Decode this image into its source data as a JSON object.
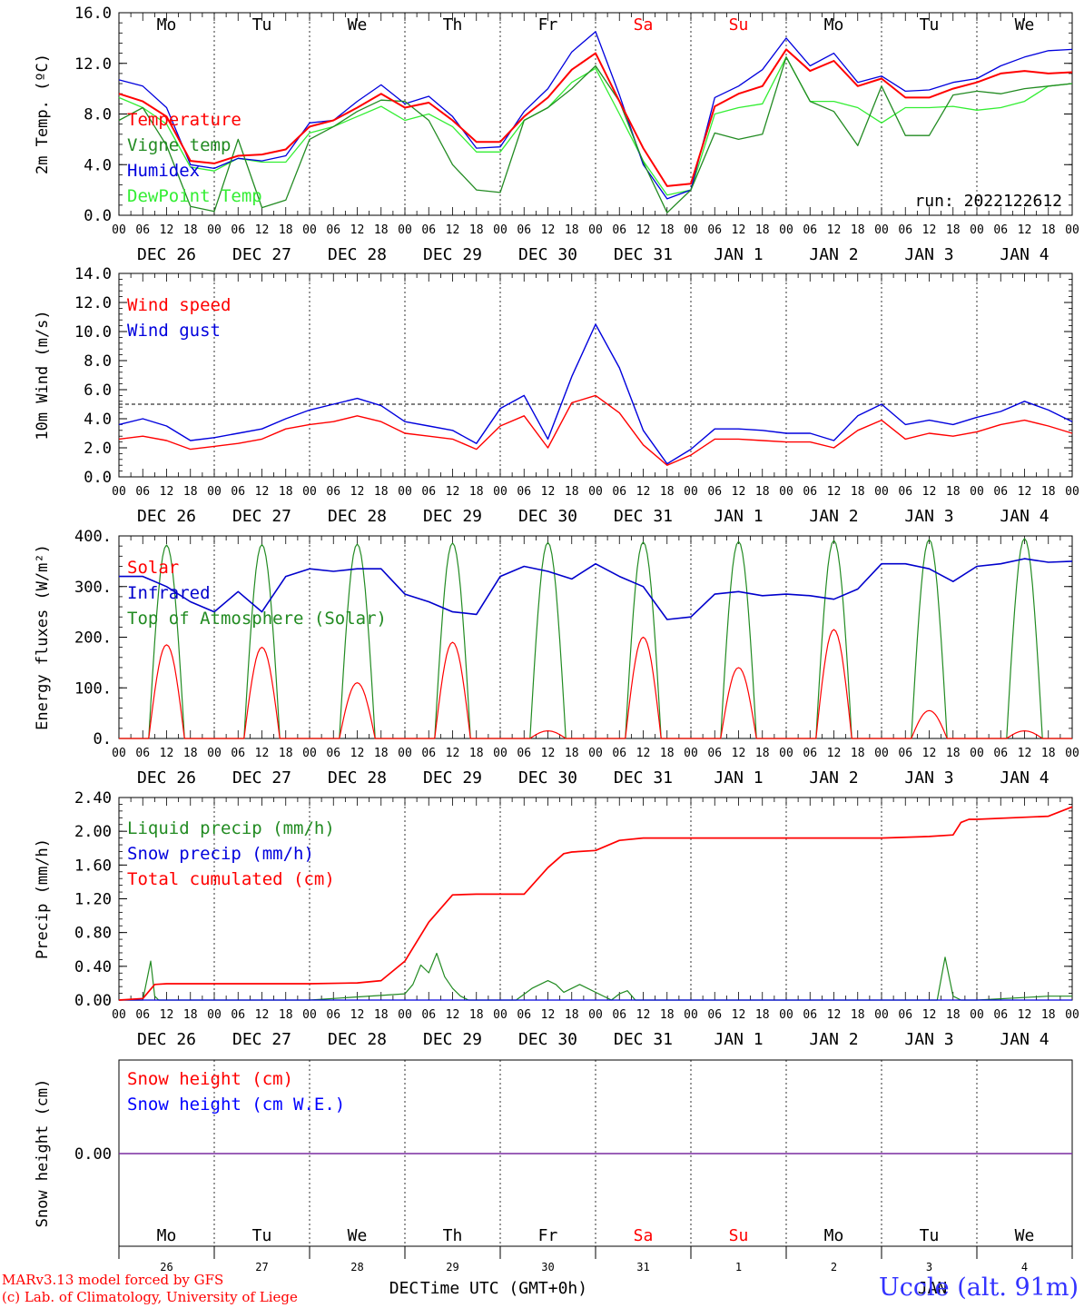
{
  "colors": {
    "temperature": "#ff0000",
    "vigne": "#228b22",
    "humidex": "#0000dd",
    "dewpoint": "#33ee33",
    "wind_speed": "#ff0000",
    "wind_gust": "#0000dd",
    "solar": "#ff0000",
    "infrared": "#0000cc",
    "toa": "#228b22",
    "liquid": "#228b22",
    "snow": "#0000dd",
    "cumulated": "#ff0000",
    "snow_h": "#ff0000",
    "snow_we": "#0000ff",
    "weekday": "#000000",
    "weekend": "#ff0000",
    "footer_left": "#ff0000",
    "footer_right": "#3333ff"
  },
  "x_axis": {
    "hour_labels": [
      "00",
      "06",
      "12",
      "18"
    ],
    "final_hour": "00",
    "date_labels": [
      "DEC 26",
      "DEC 27",
      "DEC 28",
      "DEC 29",
      "DEC 30",
      "DEC 31",
      "JAN  1",
      "JAN  2",
      "JAN  3",
      "JAN  4"
    ],
    "weekdays": [
      "Mo",
      "Tu",
      "We",
      "Th",
      "Fr",
      "Sa",
      "Su",
      "Mo",
      "Tu",
      "We"
    ],
    "weekend_index": [
      5,
      6
    ],
    "day_numbers": [
      "26",
      "27",
      "28",
      "29",
      "30",
      "31",
      "1",
      "2",
      "3",
      "4"
    ],
    "month_label_left": "DEC",
    "month_label_right": "JAN",
    "title": "Time UTC (GMT+0h)"
  },
  "run_label": "run: 2022122612",
  "footer": {
    "line1": "MARv3.13 model forced by GFS",
    "line2": "(c) Lab. of Climatology, University of Liege",
    "station": "Uccle (alt. 91m)"
  },
  "chart_data": [
    {
      "type": "line",
      "ylabel": "2m Temp. (ºC)",
      "ylim": [
        0,
        16
      ],
      "ytick_labels": [
        "0.0",
        "4.0",
        "8.0",
        "12.0",
        "16.0"
      ],
      "x_unit": "hours since DEC 26 00 UTC",
      "series": [
        {
          "name": "Temperature",
          "color_key": "temperature",
          "x": [
            0,
            6,
            12,
            18,
            24,
            30,
            36,
            42,
            48,
            54,
            60,
            66,
            72,
            78,
            84,
            90,
            96,
            102,
            108,
            114,
            120,
            126,
            132,
            138,
            144,
            150,
            156,
            162,
            168,
            174,
            180,
            186,
            192,
            198,
            204,
            210,
            216,
            222,
            228,
            234,
            240
          ],
          "y": [
            9.6,
            9.0,
            7.8,
            4.3,
            4.1,
            4.7,
            4.8,
            5.2,
            7.0,
            7.5,
            8.5,
            9.6,
            8.5,
            8.9,
            7.5,
            5.8,
            5.8,
            7.8,
            9.3,
            11.5,
            12.8,
            9.0,
            5.3,
            2.3,
            2.5,
            8.6,
            9.6,
            10.2,
            13.1,
            11.4,
            12.2,
            10.2,
            10.8,
            9.3,
            9.3,
            10.0,
            10.5,
            11.2,
            11.4,
            11.2,
            11.3
          ]
        },
        {
          "name": "Vigne temp",
          "color_key": "vigne",
          "x": [
            0,
            6,
            12,
            18,
            24,
            30,
            36,
            42,
            48,
            54,
            60,
            66,
            72,
            78,
            84,
            90,
            96,
            102,
            108,
            114,
            120,
            126,
            132,
            138,
            144,
            150,
            156,
            162,
            168,
            174,
            180,
            186,
            192,
            198,
            204,
            210,
            216,
            222,
            228,
            234,
            240
          ],
          "y": [
            7.5,
            8.5,
            5.5,
            0.7,
            0.3,
            6.0,
            0.6,
            1.2,
            6.0,
            7.0,
            8.2,
            9.1,
            9.0,
            7.5,
            4.0,
            2.0,
            1.8,
            7.5,
            8.5,
            10.0,
            11.8,
            9.0,
            4.2,
            0.2,
            2.0,
            6.5,
            6.0,
            6.4,
            12.5,
            9.0,
            8.2,
            5.5,
            10.2,
            6.3,
            6.3,
            9.5,
            9.8,
            9.6,
            10.0,
            10.2,
            10.4
          ]
        },
        {
          "name": "Humidex",
          "color_key": "humidex",
          "x": [
            0,
            6,
            12,
            18,
            24,
            30,
            36,
            42,
            48,
            54,
            60,
            66,
            72,
            78,
            84,
            90,
            96,
            102,
            108,
            114,
            120,
            126,
            132,
            138,
            144,
            150,
            156,
            162,
            168,
            174,
            180,
            186,
            192,
            198,
            204,
            210,
            216,
            222,
            228,
            234,
            240
          ],
          "y": [
            10.7,
            10.2,
            8.5,
            4.0,
            3.7,
            4.5,
            4.3,
            4.7,
            7.3,
            7.5,
            9.0,
            10.3,
            8.8,
            9.4,
            7.8,
            5.3,
            5.4,
            8.2,
            10.0,
            12.9,
            14.5,
            9.5,
            4.0,
            1.3,
            2.0,
            9.3,
            10.2,
            11.5,
            14.0,
            11.8,
            12.8,
            10.5,
            11.0,
            9.8,
            9.9,
            10.5,
            10.8,
            11.8,
            12.5,
            13.0,
            13.1
          ]
        },
        {
          "name": "DewPoint Temp",
          "color_key": "dewpoint",
          "x": [
            0,
            6,
            12,
            18,
            24,
            30,
            36,
            42,
            48,
            54,
            60,
            66,
            72,
            78,
            84,
            90,
            96,
            102,
            108,
            114,
            120,
            126,
            132,
            138,
            144,
            150,
            156,
            162,
            168,
            174,
            180,
            186,
            192,
            198,
            204,
            210,
            216,
            222,
            228,
            234,
            240
          ],
          "y": [
            9.3,
            8.5,
            7.2,
            3.8,
            3.5,
            4.5,
            4.2,
            4.2,
            6.5,
            7.0,
            7.8,
            8.6,
            7.5,
            8.0,
            7.0,
            5.0,
            5.0,
            7.5,
            8.5,
            10.5,
            11.6,
            8.0,
            4.3,
            1.6,
            2.0,
            8.0,
            8.5,
            8.8,
            12.5,
            9.0,
            9.0,
            8.5,
            7.3,
            8.5,
            8.5,
            8.6,
            8.3,
            8.5,
            9.0,
            10.2,
            10.4
          ]
        }
      ]
    },
    {
      "type": "line",
      "ylabel": "10m Wind (m/s)",
      "ylim": [
        0,
        14
      ],
      "ytick_labels": [
        "0.0",
        "2.0",
        "4.0",
        "6.0",
        "8.0",
        "10.0",
        "12.0",
        "14.0"
      ],
      "reference_line": 5,
      "series": [
        {
          "name": "Wind speed",
          "color_key": "wind_speed",
          "x": [
            0,
            6,
            12,
            18,
            24,
            30,
            36,
            42,
            48,
            54,
            60,
            66,
            72,
            78,
            84,
            90,
            96,
            102,
            108,
            114,
            120,
            126,
            132,
            138,
            144,
            150,
            156,
            162,
            168,
            174,
            180,
            186,
            192,
            198,
            204,
            210,
            216,
            222,
            228,
            234,
            240
          ],
          "y": [
            2.6,
            2.8,
            2.5,
            1.9,
            2.1,
            2.3,
            2.6,
            3.3,
            3.6,
            3.8,
            4.2,
            3.8,
            3.0,
            2.8,
            2.6,
            1.9,
            3.5,
            4.2,
            2.0,
            5.1,
            5.6,
            4.4,
            2.2,
            0.8,
            1.5,
            2.6,
            2.6,
            2.5,
            2.4,
            2.4,
            2.0,
            3.2,
            3.9,
            2.6,
            3.0,
            2.8,
            3.1,
            3.6,
            3.9,
            3.5,
            3.0
          ]
        },
        {
          "name": "Wind gust",
          "color_key": "wind_gust",
          "x": [
            0,
            6,
            12,
            18,
            24,
            30,
            36,
            42,
            48,
            54,
            60,
            66,
            72,
            78,
            84,
            90,
            96,
            102,
            108,
            114,
            120,
            126,
            132,
            138,
            144,
            150,
            156,
            162,
            168,
            174,
            180,
            186,
            192,
            198,
            204,
            210,
            216,
            222,
            228,
            234,
            240
          ],
          "y": [
            3.6,
            4.0,
            3.5,
            2.5,
            2.7,
            3.0,
            3.3,
            4.0,
            4.6,
            5.0,
            5.4,
            4.9,
            3.8,
            3.5,
            3.2,
            2.3,
            4.7,
            5.6,
            2.6,
            6.9,
            10.5,
            7.5,
            3.2,
            0.9,
            1.9,
            3.3,
            3.3,
            3.2,
            3.0,
            3.0,
            2.5,
            4.2,
            5.0,
            3.6,
            3.9,
            3.6,
            4.1,
            4.5,
            5.2,
            4.6,
            3.8
          ]
        }
      ]
    },
    {
      "type": "line",
      "ylabel": "Energy fluxes (W/m²)",
      "ylim": [
        0,
        400
      ],
      "ytick_labels": [
        "0.",
        "100.",
        "200.",
        "300.",
        "400."
      ],
      "series": [
        {
          "name": "Solar",
          "color_key": "solar",
          "daily_peak": [
            185,
            180,
            110,
            190,
            15,
            200,
            140,
            215,
            55,
            15
          ]
        },
        {
          "name": "Infrared",
          "color_key": "infrared",
          "x": [
            0,
            6,
            12,
            18,
            24,
            30,
            36,
            42,
            48,
            54,
            60,
            66,
            72,
            78,
            84,
            90,
            96,
            102,
            108,
            114,
            120,
            126,
            132,
            138,
            144,
            150,
            156,
            162,
            168,
            174,
            180,
            186,
            192,
            198,
            204,
            210,
            216,
            222,
            228,
            234,
            240
          ],
          "y": [
            320,
            320,
            300,
            270,
            250,
            290,
            250,
            320,
            335,
            330,
            335,
            335,
            285,
            270,
            250,
            245,
            320,
            340,
            330,
            315,
            345,
            320,
            300,
            235,
            240,
            285,
            290,
            282,
            285,
            282,
            275,
            295,
            345,
            345,
            335,
            310,
            340,
            345,
            355,
            348,
            350
          ]
        },
        {
          "name": "Top of Atmosphere (Solar)",
          "color_key": "toa",
          "daily_peak": [
            382,
            383,
            384,
            386,
            387,
            388,
            389,
            391,
            393,
            395
          ]
        }
      ]
    },
    {
      "type": "line",
      "ylabel": "Precip (mm/h)",
      "ylim": [
        0,
        2.6
      ],
      "ytick_labels": [
        "0.00",
        "0.40",
        "0.80",
        "1.20",
        "1.60",
        "2.00",
        "2.40"
      ],
      "series": [
        {
          "name": "Liquid precip (mm/h)",
          "color_key": "liquid",
          "x": [
            0,
            6,
            8,
            9,
            10,
            12,
            24,
            48,
            72,
            74,
            76,
            78,
            80,
            82,
            84,
            86,
            88,
            90,
            100,
            104,
            108,
            110,
            112,
            116,
            124,
            126,
            128,
            130,
            144,
            168,
            206,
            208,
            210,
            212,
            214,
            216,
            234,
            240
          ],
          "y": [
            0,
            0,
            0.5,
            0.05,
            0,
            0,
            0,
            0,
            0.08,
            0.2,
            0.45,
            0.35,
            0.6,
            0.3,
            0.15,
            0.05,
            0,
            0,
            0,
            0.15,
            0.25,
            0.2,
            0.1,
            0.2,
            0,
            0.08,
            0.12,
            0,
            0,
            0,
            0,
            0.55,
            0.05,
            0,
            0,
            0,
            0.05,
            0.05
          ]
        },
        {
          "name": "Snow precip (mm/h)",
          "color_key": "snow",
          "x": [
            0,
            240
          ],
          "y": [
            0,
            0
          ]
        },
        {
          "name": "Total cumulated (cm)",
          "color_key": "cumulated",
          "x": [
            0,
            6,
            9,
            12,
            24,
            48,
            60,
            66,
            72,
            78,
            84,
            90,
            96,
            102,
            108,
            112,
            114,
            120,
            126,
            132,
            144,
            168,
            192,
            204,
            210,
            212,
            214,
            216,
            234,
            240
          ],
          "y": [
            0,
            0.02,
            0.2,
            0.21,
            0.21,
            0.21,
            0.22,
            0.25,
            0.5,
            1.0,
            1.35,
            1.36,
            1.36,
            1.36,
            1.7,
            1.88,
            1.9,
            1.92,
            2.05,
            2.08,
            2.08,
            2.08,
            2.08,
            2.1,
            2.12,
            2.28,
            2.32,
            2.32,
            2.36,
            2.48
          ]
        }
      ]
    },
    {
      "type": "line",
      "ylabel": "Snow height (cm)",
      "ytick_labels": [
        "0.00"
      ],
      "series": [
        {
          "name": "Snow height (cm)",
          "color_key": "snow_h",
          "x": [
            0,
            240
          ],
          "y": [
            0,
            0
          ]
        },
        {
          "name": "Snow height (cm W.E.)",
          "color_key": "snow_we",
          "x": [
            0,
            240
          ],
          "y": [
            0,
            0
          ]
        }
      ]
    }
  ]
}
